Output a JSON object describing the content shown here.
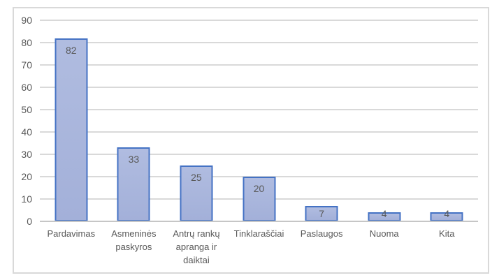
{
  "chart_data": {
    "type": "bar",
    "title": "",
    "xlabel": "",
    "ylabel": "",
    "categories": [
      "Pardavimas",
      "Asmeninės\npaskyros",
      "Antrų rankų\napranga ir\ndaiktai",
      "Tinklaraščiai",
      "Paslaugos",
      "Nuoma",
      "Kita"
    ],
    "values": [
      82,
      33,
      25,
      20,
      7,
      4,
      4
    ],
    "data_labels": [
      "82",
      "33",
      "25",
      "20",
      "7",
      "4",
      "4"
    ],
    "ylim": [
      0,
      90
    ],
    "ytick_step": 10,
    "yticks": [
      "0",
      "10",
      "20",
      "30",
      "40",
      "50",
      "60",
      "70",
      "80",
      "90"
    ],
    "grid": true,
    "legend": false,
    "data_label_position": "inside-end"
  },
  "colors": {
    "bar_fill": "#a7b3db",
    "bar_border": "#4472c4",
    "gridline": "#d9d9d9",
    "axis_line": "#c6c6c6",
    "text": "#595959",
    "frame_border": "#d9d9d9",
    "background": "#ffffff"
  }
}
